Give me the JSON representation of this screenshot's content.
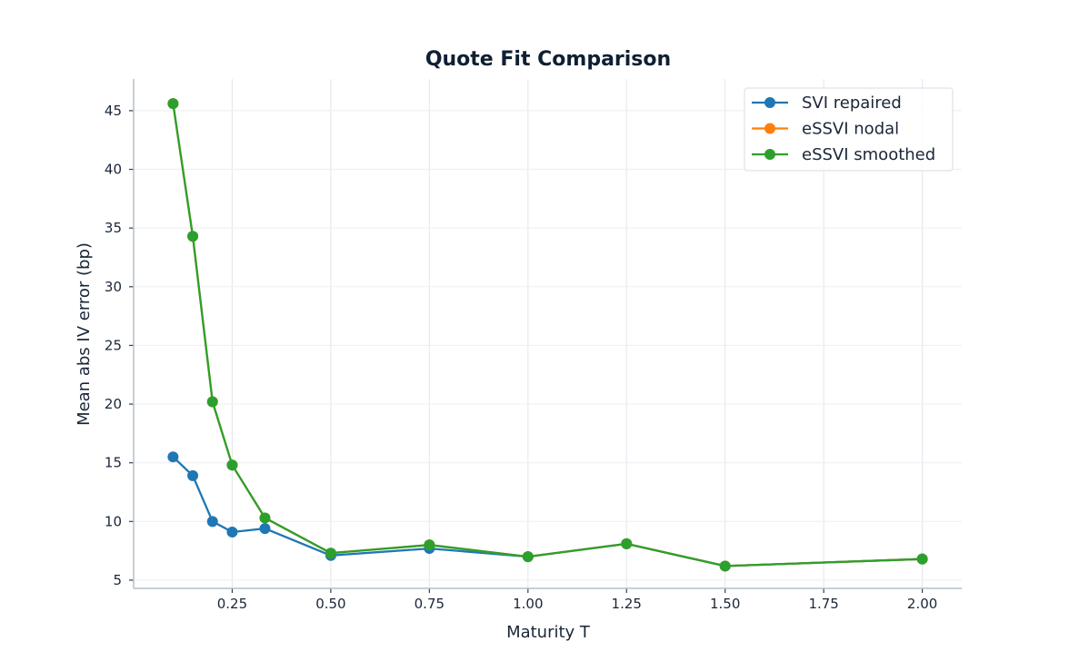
{
  "chart_data": {
    "type": "line",
    "title": "Quote Fit Comparison",
    "xlabel": "Maturity T",
    "ylabel": "Mean abs IV error (bp)",
    "xlim": [
      0.0,
      2.1
    ],
    "ylim": [
      4.3,
      47.7
    ],
    "x_ticks": [
      0.25,
      0.5,
      0.75,
      1.0,
      1.25,
      1.5,
      1.75,
      2.0
    ],
    "x_tick_labels": [
      "0.25",
      "0.50",
      "0.75",
      "1.00",
      "1.25",
      "1.50",
      "1.75",
      "2.00"
    ],
    "y_ticks": [
      5,
      10,
      15,
      20,
      25,
      30,
      35,
      40,
      45
    ],
    "y_tick_labels": [
      "5",
      "10",
      "15",
      "20",
      "25",
      "30",
      "35",
      "40",
      "45"
    ],
    "grid": true,
    "legend_position": "upper right",
    "x": [
      0.1,
      0.15,
      0.2,
      0.25,
      0.333,
      0.5,
      0.75,
      1.0,
      1.25,
      1.5,
      2.0
    ],
    "series": [
      {
        "name": "SVI repaired",
        "color": "#1f77b4",
        "values": [
          15.5,
          13.9,
          10.0,
          9.1,
          9.4,
          7.1,
          7.7,
          7.0,
          8.1,
          6.2,
          6.8
        ]
      },
      {
        "name": "eSSVI nodal",
        "color": "#ff7f0e",
        "values": [
          45.6,
          34.3,
          20.2,
          14.8,
          10.3,
          7.3,
          8.0,
          7.0,
          8.1,
          6.2,
          6.8
        ]
      },
      {
        "name": "eSSVI smoothed",
        "color": "#2ca02c",
        "values": [
          45.6,
          34.3,
          20.2,
          14.8,
          10.3,
          7.3,
          8.0,
          7.0,
          8.1,
          6.2,
          6.8
        ]
      }
    ]
  }
}
